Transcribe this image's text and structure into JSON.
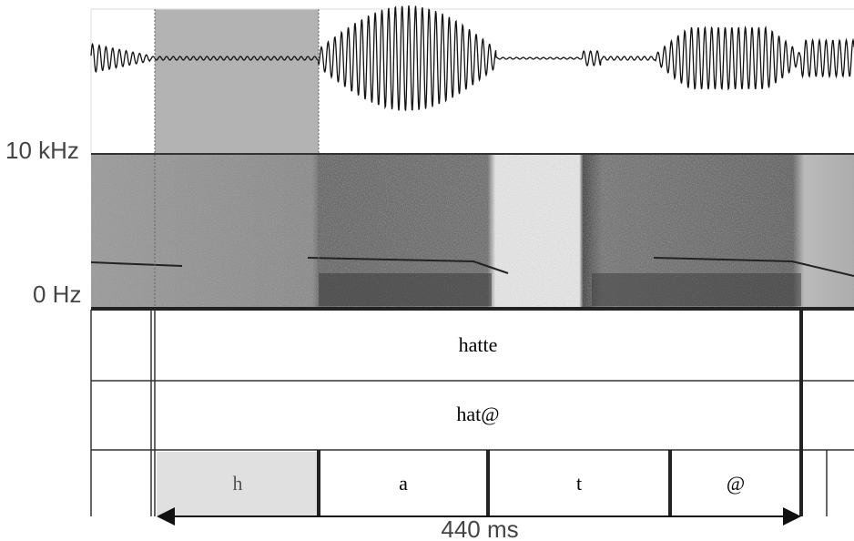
{
  "axis": {
    "top_label": "10 kHz",
    "bottom_label": "0 Hz"
  },
  "tiers": [
    {
      "label": "hatte"
    },
    {
      "label": "hat@"
    }
  ],
  "segments": [
    "h",
    "a",
    "t",
    "@"
  ],
  "duration": "440 ms"
}
